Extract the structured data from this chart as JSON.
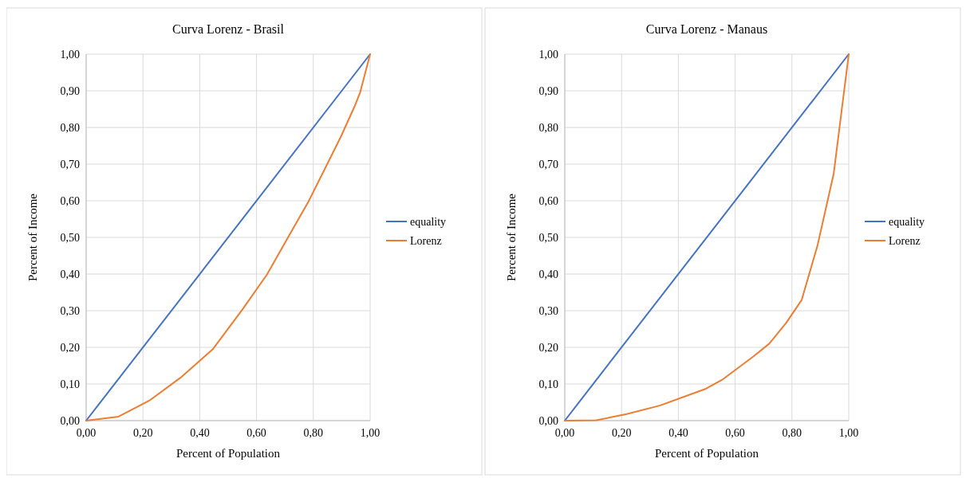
{
  "chart_data": [
    {
      "type": "line",
      "title": "Curva Lorenz - Brasil",
      "xlabel": "Percent of Population",
      "ylabel": "Percent of Income",
      "xlim": [
        0,
        1
      ],
      "ylim": [
        0,
        1
      ],
      "xticks": [
        {
          "value": 0,
          "label": "0,00"
        },
        {
          "value": 0.2,
          "label": "0,20"
        },
        {
          "value": 0.4,
          "label": "0,40"
        },
        {
          "value": 0.6,
          "label": "0,60"
        },
        {
          "value": 0.8,
          "label": "0,80"
        },
        {
          "value": 1,
          "label": "1,00"
        }
      ],
      "yticks": [
        {
          "value": 0,
          "label": "0,00"
        },
        {
          "value": 0.1,
          "label": "0,10"
        },
        {
          "value": 0.2,
          "label": "0,20"
        },
        {
          "value": 0.3,
          "label": "0,30"
        },
        {
          "value": 0.4,
          "label": "0,40"
        },
        {
          "value": 0.5,
          "label": "0,50"
        },
        {
          "value": 0.6,
          "label": "0,60"
        },
        {
          "value": 0.7,
          "label": "0,70"
        },
        {
          "value": 0.8,
          "label": "0,80"
        },
        {
          "value": 0.9,
          "label": "0,90"
        },
        {
          "value": 1,
          "label": "1,00"
        }
      ],
      "grid": true,
      "legend": "right",
      "marker": "none",
      "line_style": "solid",
      "series": [
        {
          "name": "equality",
          "color": "#4472c4",
          "x": [
            0,
            1
          ],
          "values": [
            0,
            1
          ]
        },
        {
          "name": "Lorenz",
          "color": "#ed7d31",
          "x": [
            0,
            0.114,
            0.223,
            0.332,
            0.446,
            0.551,
            0.637,
            0.71,
            0.783,
            0.838,
            0.897,
            0.945,
            0.965,
            1
          ],
          "values": [
            0,
            0.011,
            0.055,
            0.117,
            0.195,
            0.304,
            0.399,
            0.499,
            0.598,
            0.683,
            0.775,
            0.857,
            0.896,
            1
          ]
        }
      ]
    },
    {
      "type": "line",
      "title": "Curva Lorenz - Manaus",
      "xlabel": "Percent of Population",
      "ylabel": "Percent of Income",
      "xlim": [
        0,
        1
      ],
      "ylim": [
        0,
        1
      ],
      "xticks": [
        {
          "value": 0,
          "label": "0,00"
        },
        {
          "value": 0.2,
          "label": "0,20"
        },
        {
          "value": 0.4,
          "label": "0,40"
        },
        {
          "value": 0.6,
          "label": "0,60"
        },
        {
          "value": 0.8,
          "label": "0,80"
        },
        {
          "value": 1,
          "label": "1,00"
        }
      ],
      "yticks": [
        {
          "value": 0,
          "label": "0,00"
        },
        {
          "value": 0.1,
          "label": "0,10"
        },
        {
          "value": 0.2,
          "label": "0,20"
        },
        {
          "value": 0.3,
          "label": "0,30"
        },
        {
          "value": 0.4,
          "label": "0,40"
        },
        {
          "value": 0.5,
          "label": "0,50"
        },
        {
          "value": 0.6,
          "label": "0,60"
        },
        {
          "value": 0.7,
          "label": "0,70"
        },
        {
          "value": 0.8,
          "label": "0,80"
        },
        {
          "value": 0.9,
          "label": "0,90"
        },
        {
          "value": 1,
          "label": "1,00"
        }
      ],
      "grid": true,
      "legend": "right",
      "marker": "none",
      "line_style": "solid",
      "series": [
        {
          "name": "equality",
          "color": "#4472c4",
          "x": [
            0,
            1
          ],
          "values": [
            0,
            1
          ]
        },
        {
          "name": "Lorenz",
          "color": "#ed7d31",
          "x": [
            0,
            0.111,
            0.218,
            0.334,
            0.497,
            0.557,
            0.664,
            0.72,
            0.78,
            0.834,
            0.89,
            0.947,
            1
          ],
          "values": [
            0,
            0.001,
            0.018,
            0.041,
            0.087,
            0.113,
            0.175,
            0.21,
            0.267,
            0.329,
            0.478,
            0.674,
            1
          ]
        }
      ]
    }
  ]
}
